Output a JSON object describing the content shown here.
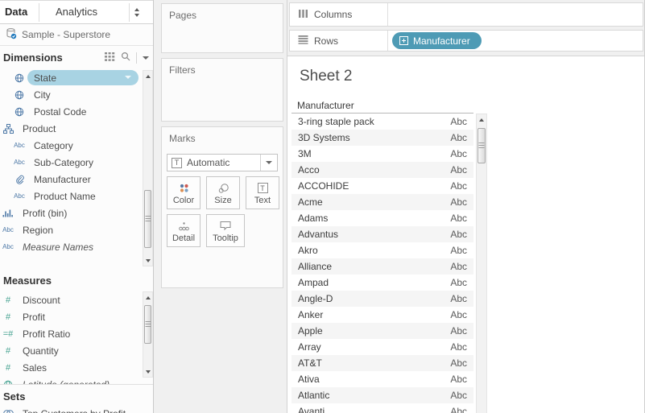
{
  "colors": {
    "pill_accent": "#4e9bb5",
    "selected_field_bg": "#a8d3e3",
    "dimension_icon_blue": "#4e79a7",
    "measure_icon_green": "#46a291",
    "row_band": "#f5f5f5"
  },
  "left_panel": {
    "tab_data": "Data",
    "tab_analytics": "Analytics",
    "datasource": "Sample - Superstore",
    "dimensions_header": "Dimensions",
    "dimension_fields": [
      {
        "label": "State",
        "icon": "globe",
        "indent": true,
        "selected": true
      },
      {
        "label": "City",
        "icon": "globe",
        "indent": true
      },
      {
        "label": "Postal Code",
        "icon": "globe",
        "indent": true
      },
      {
        "label": "Product",
        "icon": "hierarchy"
      },
      {
        "label": "Category",
        "icon": "abc",
        "indent": true
      },
      {
        "label": "Sub-Category",
        "icon": "abc",
        "indent": true
      },
      {
        "label": "Manufacturer",
        "icon": "paperclip",
        "indent": true
      },
      {
        "label": "Product Name",
        "icon": "abc",
        "indent": true
      },
      {
        "label": "Profit (bin)",
        "icon": "bin"
      },
      {
        "label": "Region",
        "icon": "abc"
      },
      {
        "label": "Measure Names",
        "icon": "abc",
        "italic": true
      }
    ],
    "measures_header": "Measures",
    "measure_fields": [
      {
        "label": "Discount",
        "icon": "number"
      },
      {
        "label": "Profit",
        "icon": "number"
      },
      {
        "label": "Profit Ratio",
        "icon": "calc"
      },
      {
        "label": "Quantity",
        "icon": "number"
      },
      {
        "label": "Sales",
        "icon": "number"
      },
      {
        "label": "Latitude (generated)",
        "icon": "globe-measure",
        "italic": true
      }
    ],
    "sets_header": "Sets",
    "set_fields": [
      {
        "label": "Top Customers by Profit",
        "icon": "set"
      }
    ]
  },
  "cards": {
    "pages_label": "Pages",
    "filters_label": "Filters",
    "marks_label": "Marks",
    "mark_type_selected": "Automatic",
    "marks_buttons_row1": [
      {
        "label": "Color",
        "icon": "color"
      },
      {
        "label": "Size",
        "icon": "size"
      },
      {
        "label": "Text",
        "icon": "text"
      }
    ],
    "marks_buttons_row2": [
      {
        "label": "Detail",
        "icon": "detail"
      },
      {
        "label": "Tooltip",
        "icon": "tooltip",
        "wide": true
      }
    ]
  },
  "shelves": {
    "columns_label": "Columns",
    "rows_label": "Rows",
    "row_pills": [
      {
        "label": "Manufacturer",
        "icon": "plus-box"
      }
    ]
  },
  "sheet": {
    "title": "Sheet 2",
    "column_header": "Manufacturer",
    "rows": [
      {
        "name": "3-ring staple pack",
        "value": "Abc"
      },
      {
        "name": "3D Systems",
        "value": "Abc"
      },
      {
        "name": "3M",
        "value": "Abc"
      },
      {
        "name": "Acco",
        "value": "Abc"
      },
      {
        "name": "ACCOHIDE",
        "value": "Abc"
      },
      {
        "name": "Acme",
        "value": "Abc"
      },
      {
        "name": "Adams",
        "value": "Abc"
      },
      {
        "name": "Advantus",
        "value": "Abc"
      },
      {
        "name": "Akro",
        "value": "Abc"
      },
      {
        "name": "Alliance",
        "value": "Abc"
      },
      {
        "name": "Ampad",
        "value": "Abc"
      },
      {
        "name": "Angle-D",
        "value": "Abc"
      },
      {
        "name": "Anker",
        "value": "Abc"
      },
      {
        "name": "Apple",
        "value": "Abc"
      },
      {
        "name": "Array",
        "value": "Abc"
      },
      {
        "name": "AT&T",
        "value": "Abc"
      },
      {
        "name": "Ativa",
        "value": "Abc"
      },
      {
        "name": "Atlantic",
        "value": "Abc"
      },
      {
        "name": "Avanti",
        "value": "Abc"
      }
    ]
  }
}
